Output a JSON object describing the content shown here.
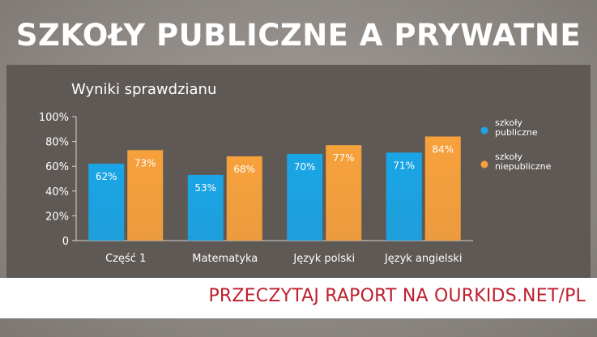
{
  "page": {
    "headline": "SZKOŁY PUBLICZNE A PRYWATNE",
    "cta": "PRZECZYTAJ RAPORT NA OURKIDS.NET/PL"
  },
  "colors": {
    "public": "#19a5e6",
    "private": "#f7a13c",
    "cta": "#bd1f2d"
  },
  "chart_data": {
    "type": "bar",
    "title": "Wyniki sprawdzianu",
    "categories": [
      "Część 1",
      "Matematyka",
      "Język polski",
      "Język angielski"
    ],
    "series": [
      {
        "name": "szkoły publiczne",
        "values": [
          62,
          53,
          70,
          71
        ]
      },
      {
        "name": "szkoły niepubliczne",
        "values": [
          73,
          68,
          77,
          84
        ]
      }
    ],
    "data_labels": [
      [
        "62%",
        "53%",
        "70%",
        "71%"
      ],
      [
        "73%",
        "68%",
        "77%",
        "84%"
      ]
    ],
    "yticks": [
      "0",
      "20%",
      "40%",
      "60%",
      "80%",
      "100%"
    ],
    "ylim": [
      0,
      100
    ],
    "grid": false,
    "legend_position": "right"
  }
}
